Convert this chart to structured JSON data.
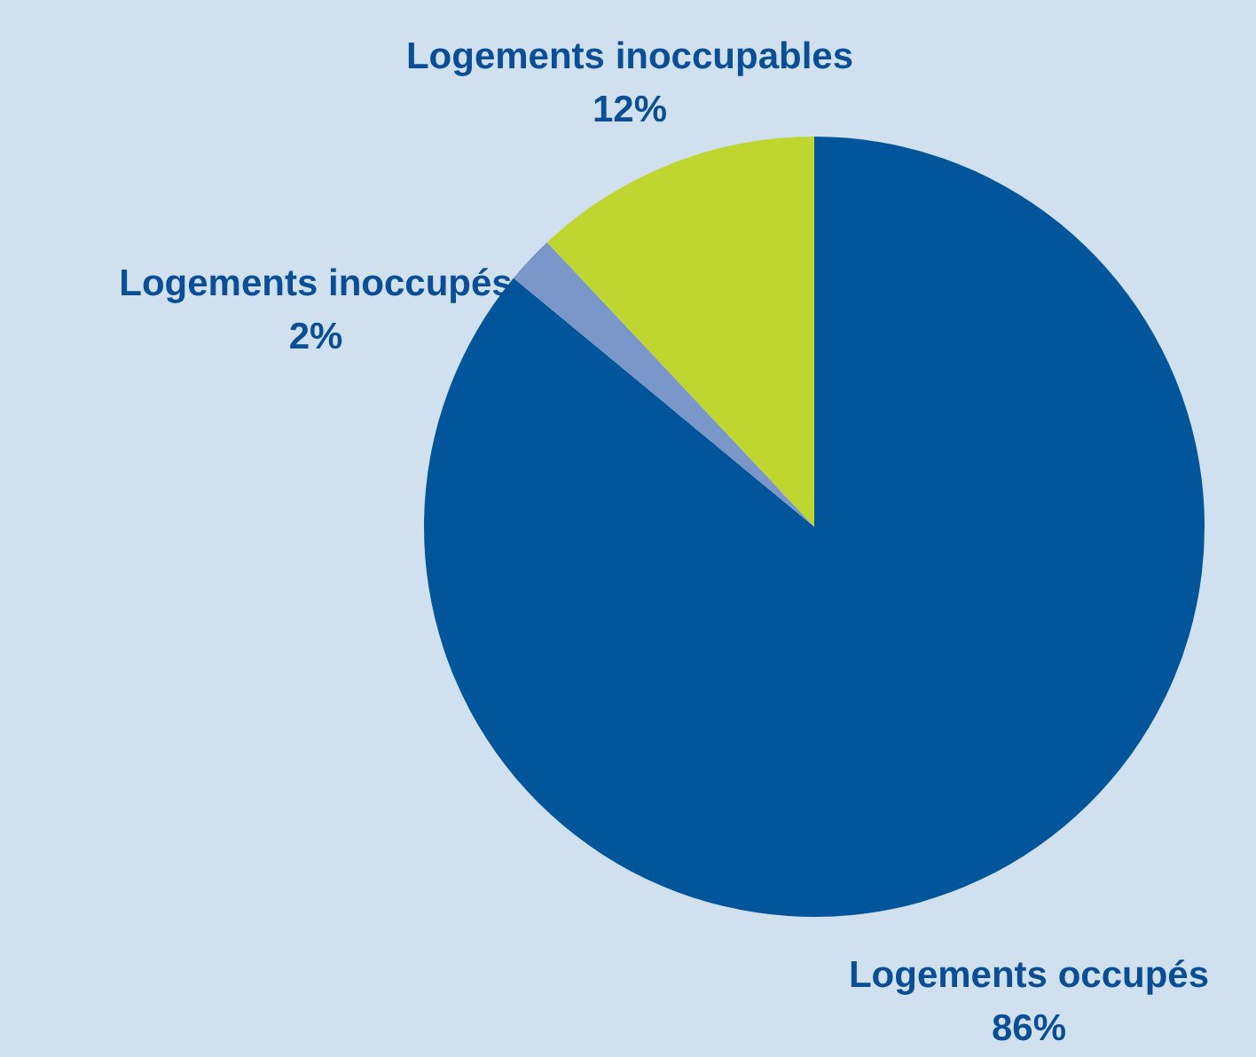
{
  "chart_data": {
    "type": "pie",
    "categories": [
      "Logements occupés",
      "Logements inoccupés",
      "Logements inoccupables"
    ],
    "values": [
      86,
      2,
      12
    ],
    "colors": [
      "#00559b",
      "#7b96c8",
      "#bfd630"
    ],
    "value_labels": [
      "86%",
      "2%",
      "12%"
    ],
    "legend": false
  }
}
